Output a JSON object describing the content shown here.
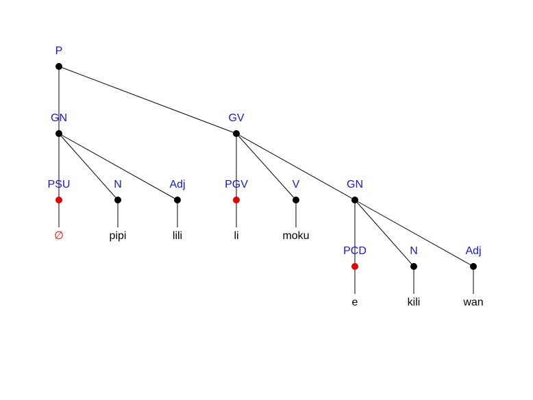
{
  "diagram": {
    "type": "syntax-tree",
    "colors": {
      "category_label": "#1414e6",
      "word_label": "#000000",
      "empty_word": "#e60000",
      "node_default": "#000000",
      "node_highlight": "#e60000",
      "edge": "#000000"
    },
    "nodes": [
      {
        "id": "p",
        "label": "P"
      },
      {
        "id": "gn1",
        "label": "GN"
      },
      {
        "id": "gv",
        "label": "GV"
      },
      {
        "id": "psu",
        "label": "PSU",
        "highlight": true
      },
      {
        "id": "n1",
        "label": "N"
      },
      {
        "id": "adj1",
        "label": "Adj"
      },
      {
        "id": "pgv",
        "label": "PGV",
        "highlight": true
      },
      {
        "id": "v",
        "label": "V"
      },
      {
        "id": "gn2",
        "label": "GN"
      },
      {
        "id": "pcd",
        "label": "PCD",
        "highlight": true
      },
      {
        "id": "n2",
        "label": "N"
      },
      {
        "id": "adj2",
        "label": "Adj"
      }
    ],
    "edges": [
      [
        "p",
        "gn1"
      ],
      [
        "p",
        "gv"
      ],
      [
        "gn1",
        "psu"
      ],
      [
        "gn1",
        "n1"
      ],
      [
        "gn1",
        "adj1"
      ],
      [
        "gv",
        "pgv"
      ],
      [
        "gv",
        "v"
      ],
      [
        "gv",
        "gn2"
      ],
      [
        "gn2",
        "pcd"
      ],
      [
        "gn2",
        "n2"
      ],
      [
        "gn2",
        "adj2"
      ]
    ],
    "words": [
      {
        "node": "psu",
        "text": "∅",
        "empty": true
      },
      {
        "node": "n1",
        "text": "pipi"
      },
      {
        "node": "adj1",
        "text": "lili"
      },
      {
        "node": "pgv",
        "text": "li"
      },
      {
        "node": "v",
        "text": "moku"
      },
      {
        "node": "pcd",
        "text": "e"
      },
      {
        "node": "n2",
        "text": "kili"
      },
      {
        "node": "adj2",
        "text": "wan"
      }
    ]
  }
}
